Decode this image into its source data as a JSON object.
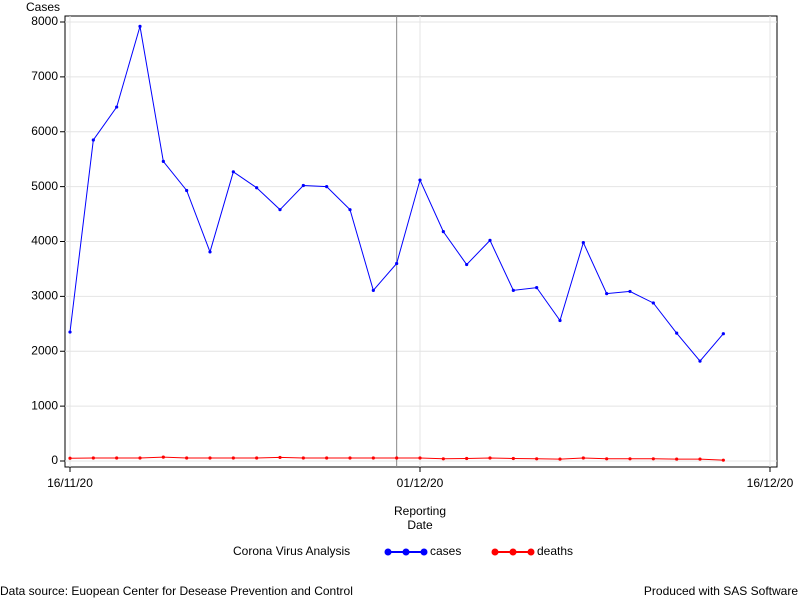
{
  "chart_data": {
    "type": "line",
    "ylabel": "Cases",
    "xlabel": [
      "Reporting",
      "Date"
    ],
    "legend_title": "Corona Virus Analysis",
    "footnote_left": "Data source: Euopean Center for Desease Prevention and Control",
    "footnote_right": "Produced with SAS Software",
    "x": [
      "16/11/20",
      "17/11/20",
      "18/11/20",
      "19/11/20",
      "20/11/20",
      "21/11/20",
      "22/11/20",
      "23/11/20",
      "24/11/20",
      "25/11/20",
      "26/11/20",
      "27/11/20",
      "28/11/20",
      "29/11/20",
      "30/11/20",
      "01/12/20",
      "02/12/20",
      "03/12/20",
      "04/12/20",
      "05/12/20",
      "06/12/20",
      "07/12/20",
      "08/12/20",
      "09/12/20",
      "10/12/20",
      "11/12/20",
      "12/12/20",
      "13/12/20",
      "14/12/20"
    ],
    "series": [
      {
        "name": "cases",
        "color": "#0000ff",
        "values": [
          2350,
          5850,
          6450,
          7920,
          5460,
          4930,
          3810,
          5270,
          4980,
          4580,
          5020,
          5000,
          4580,
          3110,
          3600,
          5120,
          4180,
          3580,
          4020,
          3110,
          3160,
          2560,
          3980,
          3050,
          3090,
          2880,
          2330,
          1820,
          2320
        ]
      },
      {
        "name": "deaths",
        "color": "#ff0000",
        "values": [
          50,
          55,
          55,
          55,
          70,
          55,
          55,
          55,
          55,
          65,
          55,
          55,
          55,
          55,
          55,
          55,
          40,
          45,
          55,
          45,
          40,
          35,
          55,
          40,
          40,
          40,
          35,
          35,
          15
        ]
      }
    ],
    "xlim": [
      "16/11/20",
      "16/12/20"
    ],
    "xticks": [
      "16/11/20",
      "01/12/20",
      "16/12/20"
    ],
    "ylim": [
      0,
      8000
    ],
    "yticks": [
      0,
      1000,
      2000,
      3000,
      4000,
      5000,
      6000,
      7000,
      8000
    ],
    "refline_x": "30/11/20",
    "grid": true
  }
}
